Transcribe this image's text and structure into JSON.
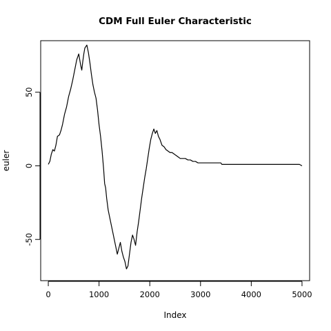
{
  "chart_data": {
    "type": "line",
    "title": "CDM Full Euler Characteristic",
    "xlabel": "Index",
    "ylabel": "euler",
    "xlim": [
      -150,
      5150
    ],
    "ylim": [
      -78,
      85
    ],
    "xticks": [
      0,
      1000,
      2000,
      3000,
      4000,
      5000
    ],
    "yticks": [
      -50,
      0,
      50
    ],
    "xtick_labels": [
      "0",
      "1000",
      "2000",
      "3000",
      "4000",
      "5000"
    ],
    "ytick_labels": [
      "-50",
      "0",
      "50"
    ],
    "grid": false,
    "legend": "none",
    "line_color": "#000000",
    "series": [
      {
        "x": [
          0,
          30,
          60,
          90,
          120,
          150,
          180,
          220,
          250,
          280,
          320,
          360,
          400,
          440,
          480,
          520,
          560,
          600,
          640,
          660,
          680,
          700,
          720,
          760,
          790,
          820,
          850,
          880,
          910,
          940,
          970,
          1000,
          1030,
          1060,
          1090,
          1110,
          1130,
          1150,
          1180,
          1210,
          1240,
          1270,
          1300,
          1330,
          1360,
          1390,
          1420,
          1450,
          1480,
          1510,
          1540,
          1570,
          1600,
          1630,
          1660,
          1690,
          1720,
          1750,
          1780,
          1810,
          1840,
          1870,
          1900,
          1930,
          1960,
          1990,
          2020,
          2050,
          2080,
          2110,
          2140,
          2170,
          2200,
          2240,
          2280,
          2320,
          2360,
          2400,
          2440,
          2480,
          2520,
          2560,
          2600,
          2650,
          2700,
          2750,
          2800,
          2850,
          2900,
          2950,
          3000,
          3050,
          3100,
          3200,
          3300,
          3400,
          3420,
          3450,
          3600,
          3800,
          4000,
          4200,
          4400,
          4600,
          4800,
          4950,
          5000
        ],
        "y": [
          1,
          3,
          8,
          11,
          10,
          14,
          20,
          21,
          24,
          28,
          35,
          40,
          47,
          52,
          58,
          65,
          72,
          76,
          68,
          65,
          71,
          76,
          80,
          82,
          77,
          70,
          62,
          55,
          50,
          46,
          38,
          28,
          20,
          10,
          -2,
          -12,
          -15,
          -22,
          -30,
          -35,
          -40,
          -45,
          -50,
          -55,
          -60,
          -56,
          -52,
          -58,
          -62,
          -65,
          -70,
          -68,
          -60,
          -52,
          -47,
          -50,
          -54,
          -45,
          -38,
          -30,
          -22,
          -15,
          -8,
          -2,
          5,
          12,
          18,
          22,
          25,
          22,
          24,
          20,
          18,
          14,
          13,
          11,
          10,
          9,
          9,
          8,
          7,
          6,
          5,
          5,
          5,
          4,
          4,
          3,
          3,
          2,
          2,
          2,
          2,
          2,
          2,
          2,
          1,
          1,
          1,
          1,
          1,
          1,
          1,
          1,
          1,
          1,
          0
        ]
      }
    ]
  }
}
